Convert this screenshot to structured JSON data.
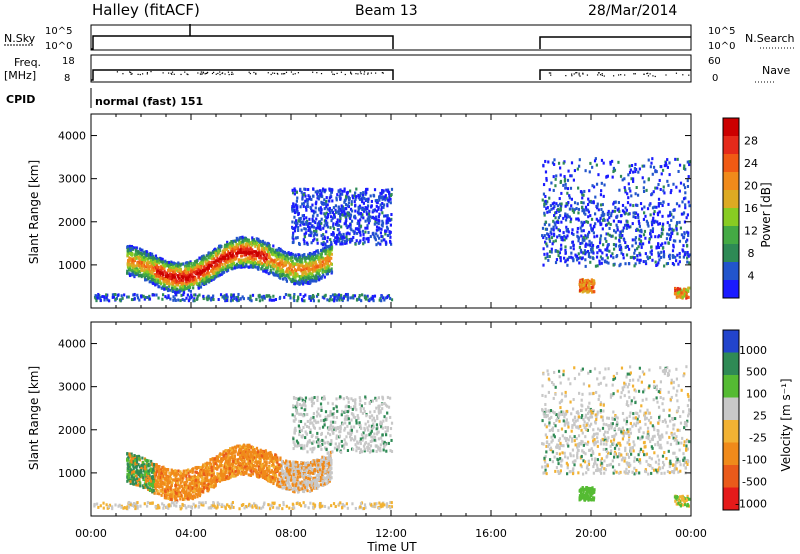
{
  "header": {
    "station": "Halley (fitACF)",
    "beam": "Beam 13",
    "date": "28/Mar/2014"
  },
  "panels": {
    "nsky_label": "N.Sky",
    "nsearch_label": "N.Search",
    "nsky_ticks": [
      "10^5",
      "10^0"
    ],
    "nsearch_ticks": [
      "10^5",
      "10^0"
    ],
    "freq_label_1": "Freq.",
    "freq_label_2": "[MHz]",
    "freq_ticks": [
      "18",
      "8"
    ],
    "nave_label": "Nave",
    "nave_ticks": [
      "60",
      "0"
    ],
    "cpid_label": "CPID",
    "cpid_value": "normal (fast) 151"
  },
  "chart_data": [
    {
      "type": "heatmap",
      "name": "power",
      "ylabel": "Slant Range [km]",
      "yticks": [
        "1000",
        "2000",
        "3000",
        "4000"
      ],
      "ylim": [
        0,
        4500
      ],
      "xlim_hours": [
        0,
        24
      ],
      "colorbar_label": "Power [dB]",
      "colorbar_ticks": [
        "4",
        "8",
        "12",
        "16",
        "20",
        "24",
        "28"
      ],
      "colors": [
        "#1a1aff",
        "#2255cc",
        "#2e8a55",
        "#44aa44",
        "#88cc22",
        "#ddaa22",
        "#f08a1a",
        "#f05a14",
        "#e52a1a",
        "#cc0000"
      ]
    },
    {
      "type": "heatmap",
      "name": "velocity",
      "ylabel": "Slant Range [km]",
      "yticks": [
        "1000",
        "2000",
        "3000",
        "4000"
      ],
      "ylim": [
        0,
        4500
      ],
      "xlim_hours": [
        0,
        24
      ],
      "colorbar_label": "Velocity [m s⁻¹]",
      "colorbar_ticks": [
        "1000",
        "500",
        "100",
        "25",
        "-25",
        "-100",
        "-500",
        "-1000"
      ],
      "colors": [
        "#2244cc",
        "#2f8a55",
        "#55bb33",
        "#c8c8c8",
        "#f2b233",
        "#f08a1a",
        "#ea5a1a",
        "#e51a1a"
      ]
    }
  ],
  "xaxis": {
    "ticks": [
      "00:00",
      "04:00",
      "08:00",
      "12:00",
      "16:00",
      "20:00",
      "00:00"
    ],
    "label": "Time UT"
  }
}
